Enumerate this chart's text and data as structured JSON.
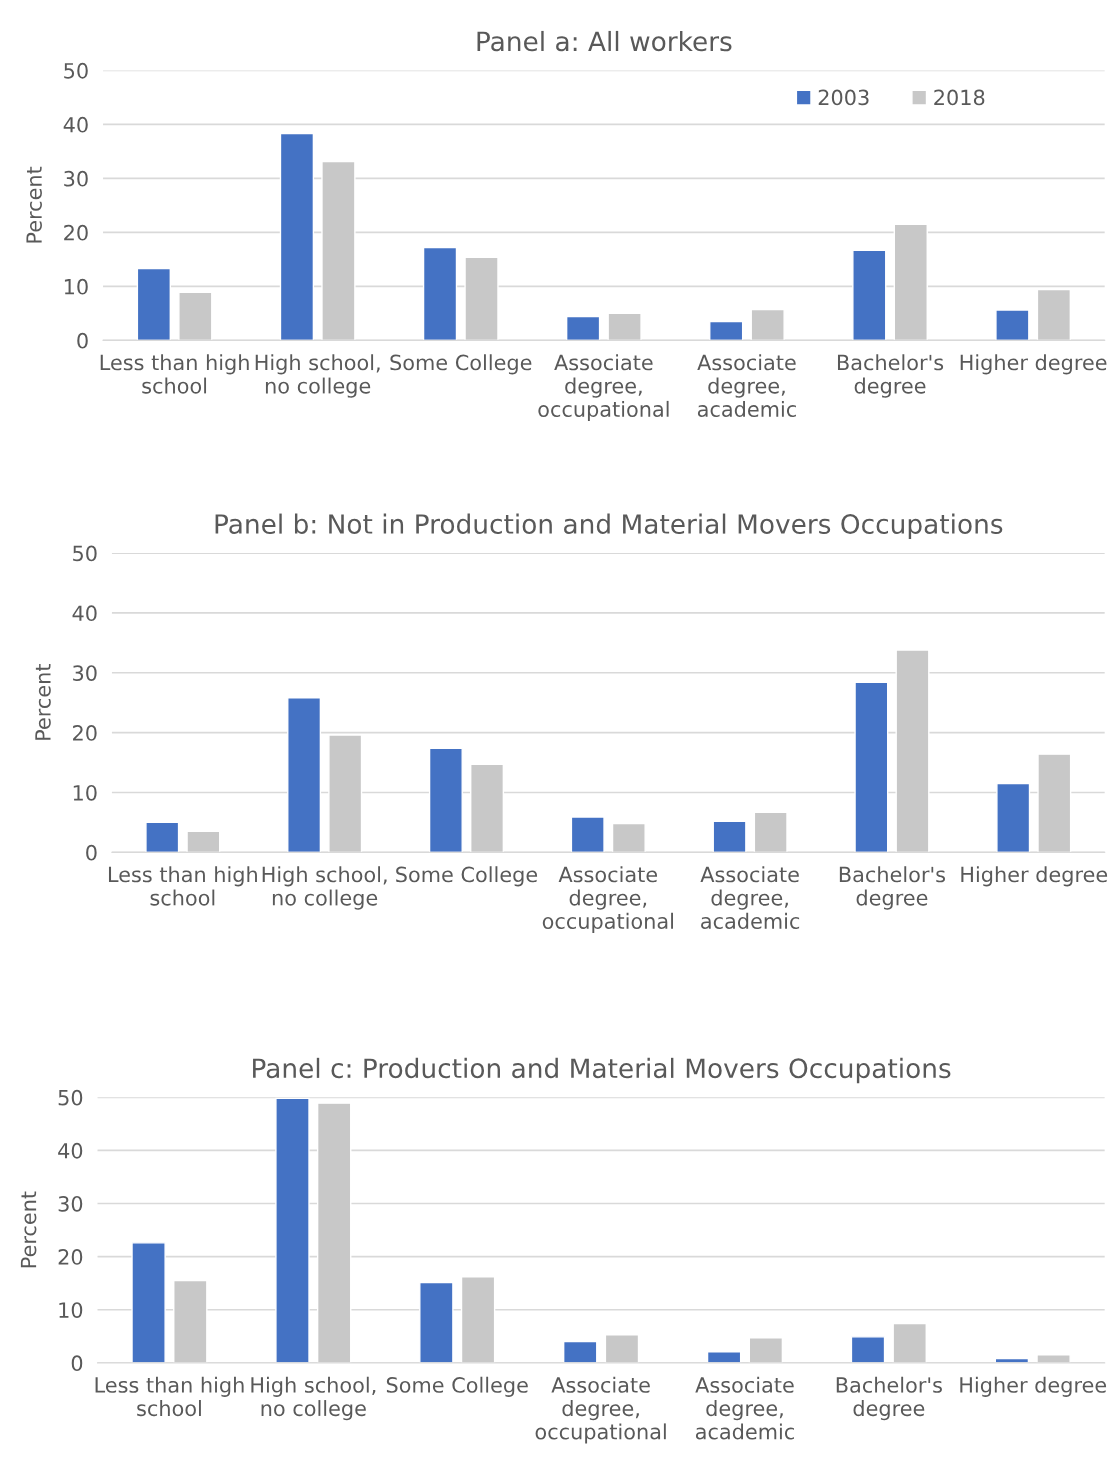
{
  "chart_data": [
    {
      "type": "bar",
      "title": "Panel a: All workers",
      "ylabel": "Percent",
      "categories": [
        "Less than high\nschool",
        "High school,\nno college",
        "Some College",
        "Associate\ndegree,\noccupational",
        "Associate\ndegree,\nacademic",
        "Bachelor's\ndegree",
        "Higher degree"
      ],
      "series": [
        {
          "name": "2003",
          "color": "#4472c4",
          "values": [
            13.3,
            38.3,
            17.2,
            4.4,
            3.5,
            16.7,
            5.6
          ]
        },
        {
          "name": "2018",
          "color": "#c8c8c8",
          "values": [
            8.9,
            33.1,
            15.4,
            5.0,
            5.7,
            21.5,
            9.4
          ]
        }
      ],
      "ylim": [
        0,
        50
      ],
      "yticks": [
        0,
        10,
        20,
        30,
        40,
        50
      ],
      "grid": "y",
      "legend": "top right"
    },
    {
      "type": "bar",
      "title": "Panel b: Not in Production and Material Movers Occupations",
      "ylabel": "Percent",
      "categories": [
        "Less than high\nschool",
        "High school,\nno college",
        "Some College",
        "Associate\ndegree,\noccupational",
        "Associate\ndegree,\nacademic",
        "Bachelor's\ndegree",
        "Higher degree"
      ],
      "series": [
        {
          "color": "#4472c4",
          "values": [
            5.0,
            25.8,
            17.4,
            5.9,
            5.2,
            28.4,
            11.5
          ]
        },
        {
          "color": "#c8c8c8",
          "values": [
            3.5,
            19.6,
            14.7,
            4.8,
            6.7,
            33.8,
            16.4
          ]
        }
      ],
      "ylim": [
        0,
        50
      ],
      "yticks": [
        0,
        10,
        20,
        30,
        40,
        50
      ],
      "grid": "y"
    },
    {
      "type": "bar",
      "title": "Panel c: Production and Material Movers Occupations",
      "ylabel": "Percent",
      "categories": [
        "Less than high\nschool",
        "High school,\nno college",
        "Some College",
        "Associate\ndegree,\noccupational",
        "Associate\ndegree,\nacademic",
        "Bachelor's\ndegree",
        "Higher degree"
      ],
      "series": [
        {
          "color": "#4472c4",
          "values": [
            22.6,
            49.8,
            15.1,
            4.0,
            2.1,
            4.9,
            0.8
          ]
        },
        {
          "color": "#c8c8c8",
          "values": [
            15.5,
            48.9,
            16.2,
            5.3,
            4.7,
            7.4,
            1.5
          ]
        }
      ],
      "ylim": [
        0,
        50
      ],
      "yticks": [
        0,
        10,
        20,
        30,
        40,
        50
      ],
      "grid": "y"
    }
  ]
}
